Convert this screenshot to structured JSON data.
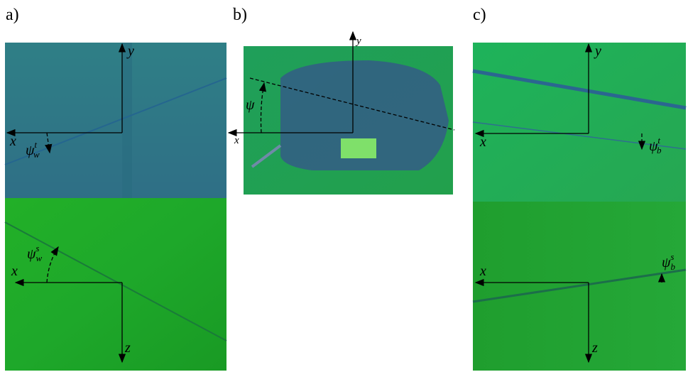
{
  "panels": [
    {
      "label": "a)",
      "top": {
        "axis_h": "x",
        "axis_v": "y",
        "angle": {
          "symbol": "ψ",
          "sub": "w",
          "sup": "t"
        }
      },
      "bottom": {
        "axis_h": "x",
        "axis_v": "z",
        "angle": {
          "symbol": "ψ",
          "sub": "w",
          "sup": "s"
        }
      }
    },
    {
      "label": "b)",
      "top": {
        "axis_h": "x",
        "axis_v": "y",
        "angle": {
          "symbol": "ψ"
        }
      }
    },
    {
      "label": "c)",
      "top": {
        "axis_h": "x",
        "axis_v": "y",
        "angle": {
          "symbol": "ψ",
          "sub": "b",
          "sup": "t"
        }
      },
      "bottom": {
        "axis_h": "x",
        "axis_v": "z",
        "angle": {
          "symbol": "ψ",
          "sub": "b",
          "sup": "s"
        }
      }
    }
  ]
}
